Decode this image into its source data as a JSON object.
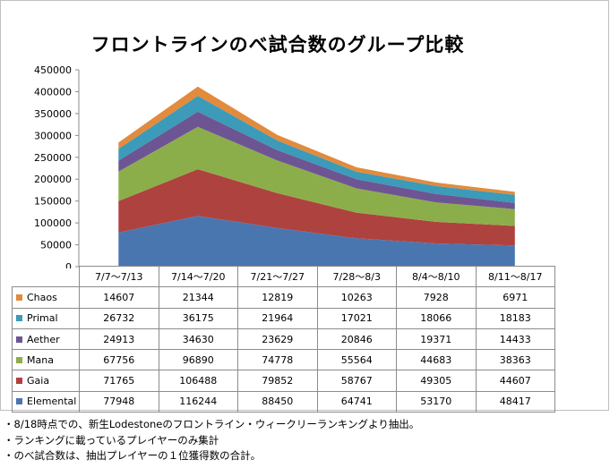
{
  "chart_data": {
    "type": "area",
    "stacked": true,
    "title": "フロントラインのべ試合数のグループ比較",
    "categories": [
      "7/7〜7/13",
      "7/14〜7/20",
      "7/21〜7/27",
      "7/28〜8/3",
      "8/4〜8/10",
      "8/11〜8/17"
    ],
    "ylim": [
      0,
      450000
    ],
    "yticks": [
      "0",
      "50000",
      "100000",
      "150000",
      "200000",
      "250000",
      "300000",
      "350000",
      "400000",
      "450000"
    ],
    "grid": false,
    "series": [
      {
        "name": "Elemental",
        "color": "#4a76b0",
        "values": [
          77948,
          116244,
          88450,
          64741,
          53170,
          48417
        ]
      },
      {
        "name": "Gaia",
        "color": "#ae423e",
        "values": [
          71765,
          106488,
          79852,
          58767,
          49305,
          44607
        ]
      },
      {
        "name": "Mana",
        "color": "#8cae4a",
        "values": [
          67756,
          96890,
          74778,
          55564,
          44683,
          38363
        ]
      },
      {
        "name": "Aether",
        "color": "#6d5594",
        "values": [
          24913,
          34630,
          23629,
          20846,
          19371,
          14433
        ]
      },
      {
        "name": "Primal",
        "color": "#3b9bb8",
        "values": [
          26732,
          36175,
          21964,
          17021,
          18066,
          18183
        ]
      },
      {
        "name": "Chaos",
        "color": "#e28b3d",
        "values": [
          14607,
          21344,
          12819,
          10263,
          7928,
          6971
        ]
      }
    ]
  },
  "notes": [
    "・8/18時点での、新生Lodestoneのフロントライン・ウィークリーランキングより抽出。",
    "・ランキングに載っているプレイヤーのみ集計",
    "・のべ試合数は、抽出プレイヤーの１位獲得数の合計。"
  ]
}
